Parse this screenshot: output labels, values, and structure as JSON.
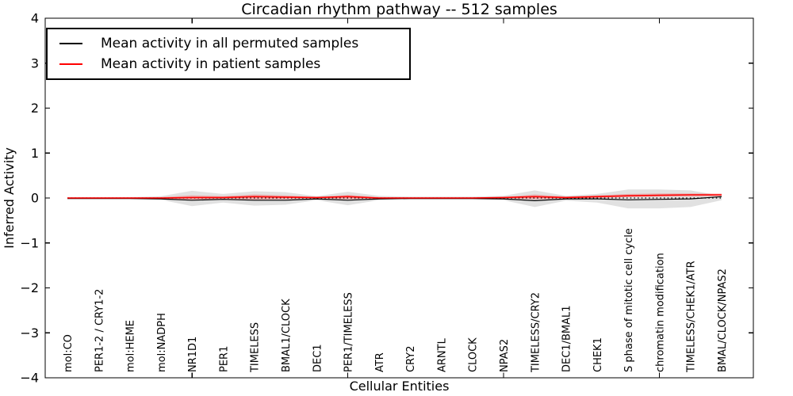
{
  "chart_data": {
    "type": "line",
    "title": "Circadian rhythm pathway -- 512 samples",
    "xlabel": "Cellular Entities",
    "ylabel": "Inferred Activity",
    "ylim": [
      -4,
      4
    ],
    "y_tick_labels": [
      "4",
      "3",
      "2",
      "1",
      "0",
      "−1",
      "−2",
      "−3",
      "−4"
    ],
    "y_tick_values": [
      4,
      3,
      2,
      1,
      0,
      -1,
      -2,
      -3,
      -4
    ],
    "x_major_ticks": [
      5,
      10,
      15,
      20
    ],
    "grid": false,
    "legend_position": "upper left",
    "categories": [
      "mol:CO",
      "PER1-2 / CRY1-2",
      "mol:HEME",
      "mol:NADPH",
      "NR1D1",
      "PER1",
      "TIMELESS",
      "BMAL1/CLOCK",
      "DEC1",
      "PER1/TIMELESS",
      "ATR",
      "CRY2",
      "ARNTL",
      "CLOCK",
      "NPAS2",
      "TIMELESS/CRY2",
      "DEC1/BMAL1",
      "CHEK1",
      "S phase of mitotic cell cycle",
      "chromatin modification",
      "TIMELESS/CHEK1/ATR",
      "BMAL/CLOCK/NPAS2"
    ],
    "series": [
      {
        "name": "Mean activity in all permuted samples",
        "color": "#000000",
        "style": "solid",
        "values": [
          -0.01,
          -0.01,
          -0.01,
          -0.02,
          -0.05,
          -0.03,
          -0.05,
          -0.05,
          -0.02,
          -0.05,
          -0.02,
          -0.01,
          -0.01,
          -0.01,
          -0.02,
          -0.06,
          -0.02,
          -0.02,
          -0.04,
          -0.03,
          -0.02,
          0.03
        ]
      },
      {
        "name": "Mean activity in patient samples",
        "color": "#ff0000",
        "style": "solid",
        "values": [
          0,
          0,
          0,
          0,
          0.01,
          0.01,
          0.03,
          0.02,
          0.01,
          0.03,
          0,
          0,
          0,
          0,
          0.01,
          0.03,
          0.01,
          0.03,
          0.05,
          0.06,
          0.07,
          0.07
        ]
      }
    ],
    "bands": [
      {
        "name": "permuted samples envelope",
        "color": "#bdbdbd",
        "opacity": 0.45,
        "upper": [
          0.02,
          0.02,
          0.02,
          0.04,
          0.16,
          0.09,
          0.15,
          0.13,
          0.04,
          0.14,
          0.05,
          0.03,
          0.03,
          0.03,
          0.05,
          0.17,
          0.05,
          0.09,
          0.19,
          0.19,
          0.17,
          0.05
        ],
        "lower": [
          -0.02,
          -0.02,
          -0.02,
          -0.04,
          -0.18,
          -0.1,
          -0.17,
          -0.15,
          -0.05,
          -0.16,
          -0.05,
          -0.03,
          -0.03,
          -0.03,
          -0.05,
          -0.2,
          -0.06,
          -0.1,
          -0.23,
          -0.23,
          -0.2,
          -0.05
        ]
      },
      {
        "name": "patient samples envelope",
        "color": "#ff0000",
        "opacity": 0.22,
        "upper": [
          0.01,
          0.01,
          0.01,
          0.02,
          0.06,
          0.04,
          0.08,
          0.06,
          0.02,
          0.07,
          0.02,
          0.01,
          0.01,
          0.01,
          0.02,
          0.08,
          0.03,
          0.06,
          0.09,
          0.1,
          0.1,
          0.1
        ],
        "lower": [
          -0.01,
          -0.01,
          -0.01,
          -0.02,
          -0.04,
          -0.03,
          -0.04,
          -0.03,
          -0.01,
          -0.03,
          -0.01,
          -0.01,
          -0.01,
          -0.01,
          -0.01,
          -0.03,
          -0.01,
          0,
          0.02,
          0.03,
          0.03,
          0.04
        ]
      }
    ],
    "reference_line": {
      "y": 0,
      "style": "dotted",
      "color": "#000000"
    },
    "legend": [
      "Mean activity in all permuted samples",
      "Mean activity in patient samples"
    ]
  }
}
